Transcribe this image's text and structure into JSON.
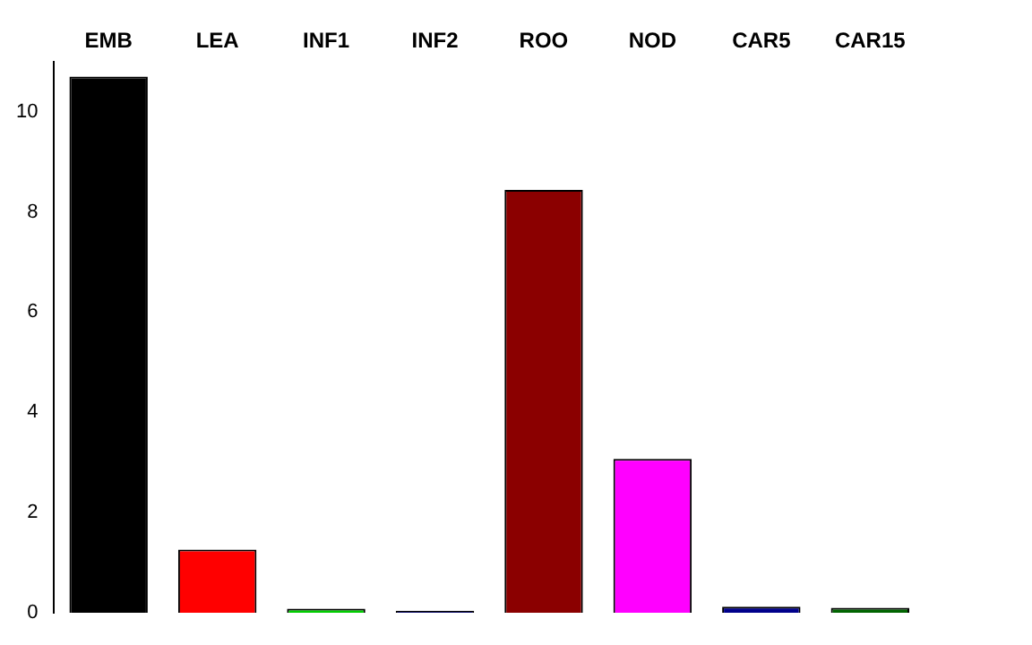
{
  "chart_data": {
    "type": "bar",
    "categories": [
      "EMB",
      "LEA",
      "INF1",
      "INF2",
      "ROO",
      "NOD",
      "CAR5",
      "CAR15"
    ],
    "values": [
      10.7,
      1.26,
      0.08,
      0.04,
      8.44,
      3.07,
      0.12,
      0.1
    ],
    "colors": [
      "#000000",
      "#ff0000",
      "#00cd00",
      "#191970",
      "#8b0000",
      "#ff00ff",
      "#00008b",
      "#006400"
    ],
    "ylim": [
      0,
      11
    ],
    "yticks": [
      0,
      2,
      4,
      6,
      8,
      10
    ],
    "grid": false,
    "legend": false
  }
}
